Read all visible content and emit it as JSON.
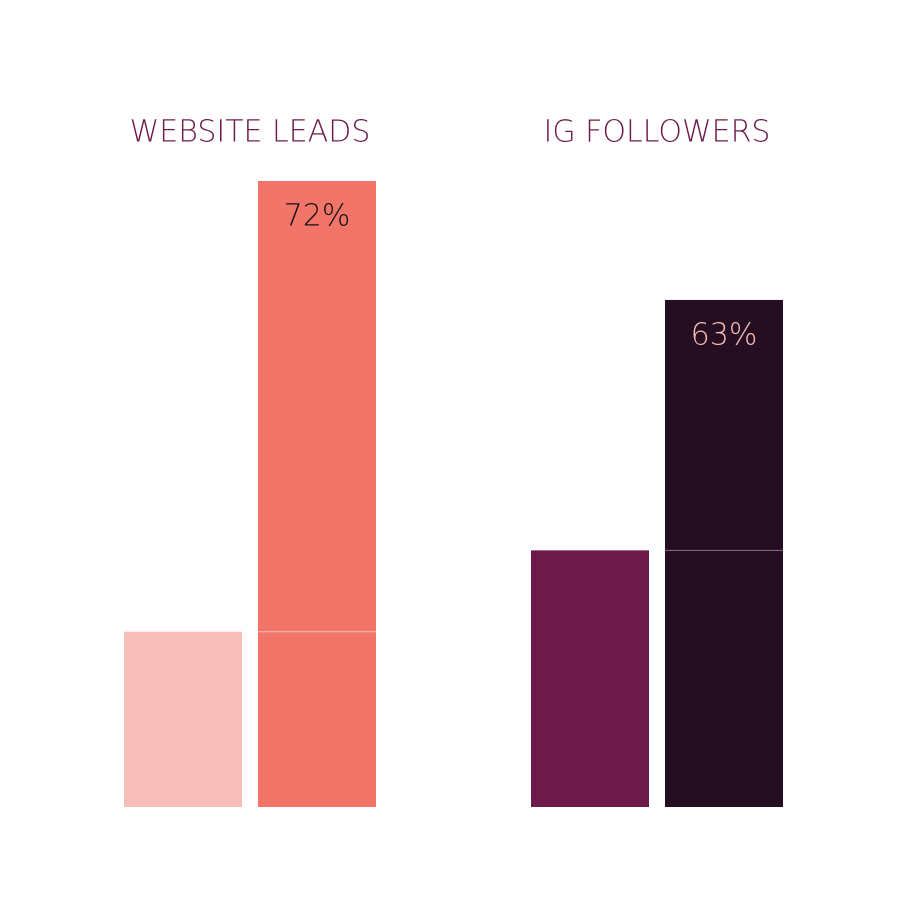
{
  "chart_data": [
    {
      "type": "bar",
      "title": "WEBSITE LEADS",
      "title_color": "#6d1a4a",
      "categories": [
        null,
        null
      ],
      "values": [
        28,
        100
      ],
      "colors": [
        "#f7bdb8",
        "#f3756a"
      ],
      "ylim": [
        0,
        100
      ],
      "annotation": "72%",
      "annotation_color": "#111111",
      "marker_color": "#f7bdb8"
    },
    {
      "type": "bar",
      "title": "IG FOLLOWERS",
      "title_color": "#6d1a4a",
      "categories": [
        null,
        null
      ],
      "values": [
        41,
        81
      ],
      "colors": [
        "#6d1a4a",
        "#250d22"
      ],
      "ylim": [
        0,
        100
      ],
      "annotation": "63%",
      "annotation_color": "#f7bdb8",
      "marker_color": "#8a6a80"
    }
  ]
}
